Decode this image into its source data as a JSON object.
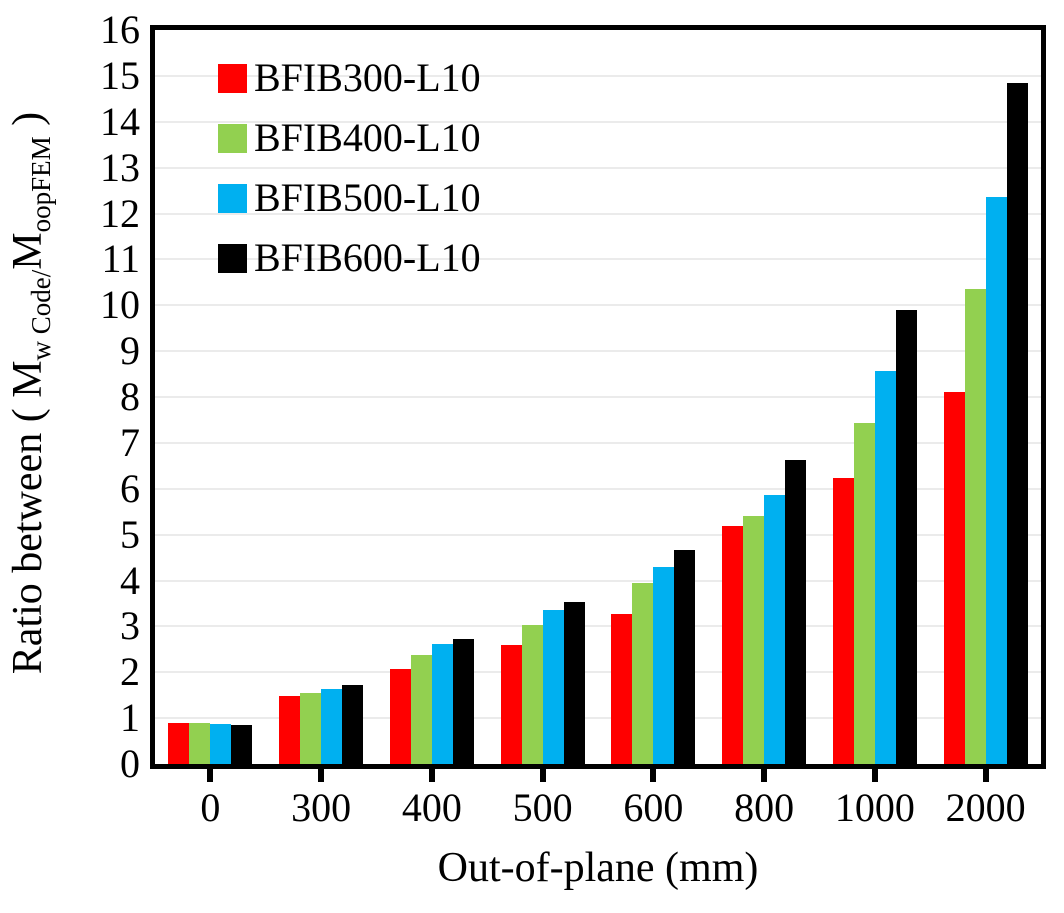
{
  "chart_data": {
    "type": "bar",
    "title": "",
    "xlabel": "Out-of-plane (mm)",
    "ylabel_plain": "Ratio between ( Mw Code/MoopFEM )",
    "ylabel_parts": [
      {
        "text": "Ratio between ( M",
        "sub": false
      },
      {
        "text": "w Code/",
        "sub": true
      },
      {
        "text": "M",
        "sub": false
      },
      {
        "text": "oopFEM",
        "sub": true
      },
      {
        "text": " )",
        "sub": false
      }
    ],
    "categories": [
      "0",
      "300",
      "400",
      "500",
      "600",
      "800",
      "1000",
      "2000"
    ],
    "series": [
      {
        "name": "BFIB300-L10",
        "color": "#FF0000",
        "values": [
          0.9,
          1.48,
          2.08,
          2.6,
          3.27,
          5.18,
          6.24,
          8.12
        ]
      },
      {
        "name": "BFIB400-L10",
        "color": "#92D050",
        "values": [
          0.89,
          1.54,
          2.37,
          3.04,
          3.95,
          5.4,
          7.43,
          10.35
        ]
      },
      {
        "name": "BFIB500-L10",
        "color": "#00B0F0",
        "values": [
          0.88,
          1.64,
          2.62,
          3.36,
          4.3,
          5.86,
          8.56,
          12.37
        ]
      },
      {
        "name": "BFIB600-L10",
        "color": "#000000",
        "values": [
          0.86,
          1.73,
          2.73,
          3.54,
          4.67,
          6.62,
          9.9,
          14.85
        ]
      }
    ],
    "ylim": [
      0,
      16
    ],
    "ytick_step": 1,
    "grid": true,
    "legend_position": "top-left-inside",
    "colors": {
      "grid": "#EBEBEB",
      "axis": "#000000",
      "background": "#FFFFFF"
    }
  }
}
